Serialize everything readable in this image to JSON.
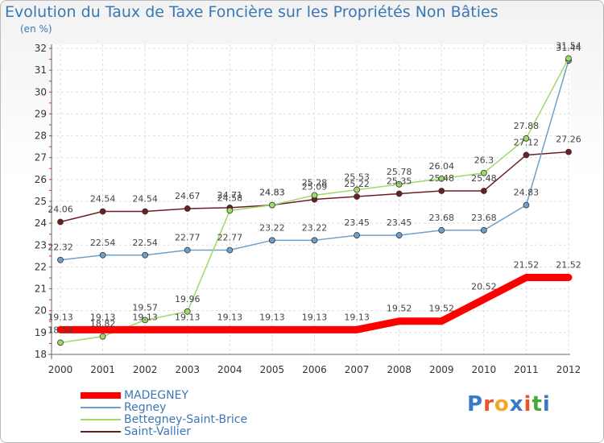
{
  "title": "Evolution du Taux de Taxe Foncière sur les Propriétés Non Bâties",
  "subtitle": "(en %)",
  "logo": {
    "text": "Proxiti",
    "colors": [
      "#3a78c8",
      "#e8552a",
      "#f5a623",
      "#3a78c8",
      "#e8552a",
      "#46a83c",
      "#3a78c8"
    ]
  },
  "chart_data": {
    "type": "line",
    "title": "Evolution du Taux de Taxe Foncière sur les Propriétés Non Bâties",
    "ylabel": "(en %)",
    "xlabel": "",
    "x": [
      "2000",
      "2001",
      "2002",
      "2003",
      "2004",
      "2005",
      "2006",
      "2007",
      "2008",
      "2009",
      "2010",
      "2011",
      "2012"
    ],
    "ylim": [
      18,
      32
    ],
    "yticks": [
      "18",
      "19",
      "20",
      "21",
      "22",
      "23",
      "24",
      "25",
      "26",
      "27",
      "28",
      "29",
      "30",
      "31",
      "32"
    ],
    "grid": true,
    "series": [
      {
        "name": "MADEGNEY",
        "color": "#ff0000",
        "values": [
          19.13,
          19.13,
          19.13,
          19.13,
          19.13,
          19.13,
          19.13,
          19.13,
          19.52,
          19.52,
          20.52,
          21.52,
          21.52
        ],
        "labels": [
          "19.13",
          "19.13",
          "19.13",
          "19.13",
          "19.13",
          "19.13",
          "19.13",
          "19.13",
          "19.52",
          "19.52",
          "20.52",
          "21.52",
          "21.52"
        ]
      },
      {
        "name": "Regney",
        "color": "#6fa0cc",
        "values": [
          22.32,
          22.54,
          22.54,
          22.77,
          22.77,
          23.22,
          23.22,
          23.45,
          23.45,
          23.68,
          23.68,
          24.83,
          31.44
        ],
        "labels": [
          "22.32",
          "22.54",
          "22.54",
          "22.77",
          "22.77",
          "23.22",
          "23.22",
          "23.45",
          "23.45",
          "23.68",
          "23.68",
          "24.83",
          "31.44"
        ]
      },
      {
        "name": "Bettegney-Saint-Brice",
        "color": "#9fd96b",
        "values": [
          18.54,
          18.82,
          19.57,
          19.96,
          24.58,
          24.83,
          25.28,
          25.53,
          25.78,
          26.04,
          26.3,
          27.88,
          31.54
        ],
        "labels": [
          "18.54",
          "18.82",
          "19.57",
          "19.96",
          "24.58",
          "24.83",
          "25.28",
          "25.53",
          "25.78",
          "26.04",
          "26.3",
          "27.88",
          "31.54"
        ]
      },
      {
        "name": "Saint-Vallier",
        "color": "#6b1f24",
        "values": [
          24.06,
          24.54,
          24.54,
          24.67,
          24.71,
          24.83,
          25.09,
          25.22,
          25.35,
          25.48,
          25.48,
          27.12,
          27.26
        ],
        "labels": [
          "24.06",
          "24.54",
          "24.54",
          "24.67",
          "24.71",
          "24.83",
          "25.09",
          "25.22",
          "25.35",
          "25.48",
          "25.48",
          "27.12",
          "27.26"
        ]
      }
    ]
  }
}
